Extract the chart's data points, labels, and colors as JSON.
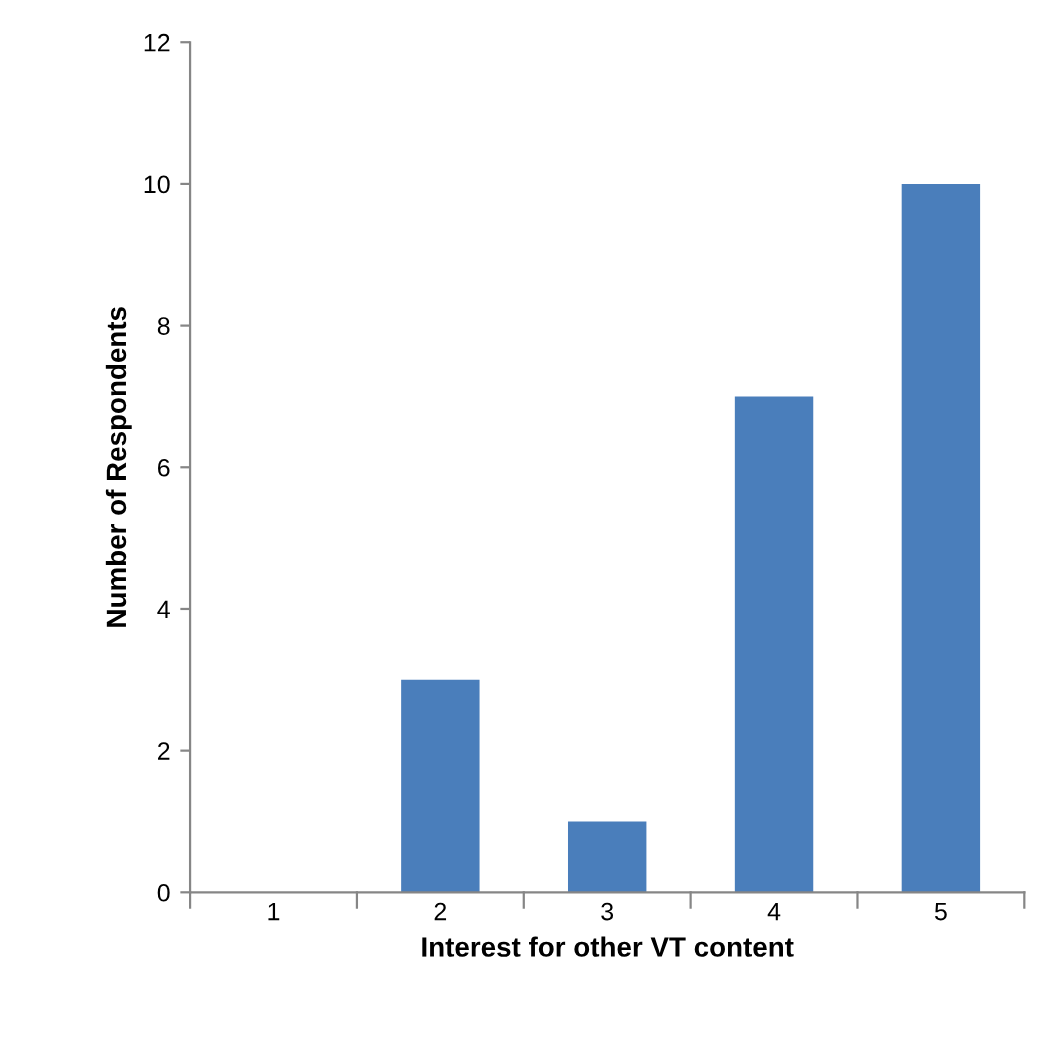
{
  "chart_data": {
    "type": "bar",
    "xlabel": "Interest for other VT content",
    "ylabel": "Number of Respondents",
    "categories": [
      "1",
      "2",
      "3",
      "4",
      "5"
    ],
    "values": [
      0,
      3,
      1,
      7,
      10
    ],
    "color": "#4a7ebb",
    "ylim": [
      0,
      12
    ],
    "yticks": [
      0,
      2,
      4,
      6,
      8,
      10,
      12
    ],
    "grid": false,
    "legend": false
  }
}
